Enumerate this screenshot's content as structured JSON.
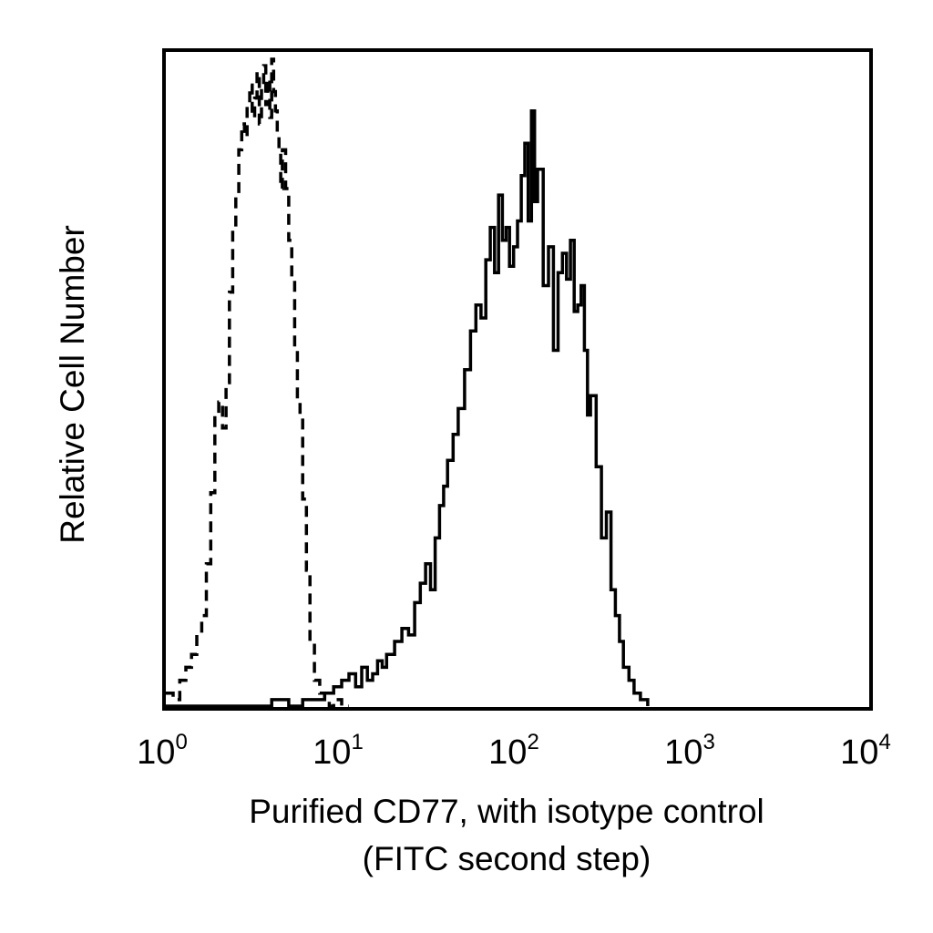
{
  "chart_data": {
    "type": "line",
    "title": "",
    "xlabel_line1": "Purified CD77, with isotype control",
    "xlabel_line2": "(FITC second step)",
    "ylabel": "Relative Cell Number",
    "x_scale": "log",
    "xlim": [
      1,
      10000
    ],
    "ylim": [
      0,
      1
    ],
    "x_ticks": [
      {
        "base": "10",
        "exp": "0"
      },
      {
        "base": "10",
        "exp": "1"
      },
      {
        "base": "10",
        "exp": "2"
      },
      {
        "base": "10",
        "exp": "3"
      },
      {
        "base": "10",
        "exp": "4"
      }
    ],
    "grid": false,
    "legend": "none",
    "series": [
      {
        "style": "dashed",
        "color": "#000000",
        "x": [
          1.0,
          1.1,
          1.2,
          1.3,
          1.4,
          1.5,
          1.6,
          1.7,
          1.8,
          1.9,
          2.0,
          2.1,
          2.2,
          2.3,
          2.4,
          2.5,
          2.6,
          2.7,
          2.8,
          2.9,
          3.0,
          3.1,
          3.2,
          3.3,
          3.4,
          3.5,
          3.6,
          3.7,
          3.8,
          3.9,
          4.0,
          4.1,
          4.2,
          4.3,
          4.4,
          4.5,
          4.6,
          4.8,
          5.0,
          5.2,
          5.4,
          5.6,
          5.8,
          6.0,
          6.3,
          6.6,
          7.0,
          7.5,
          8.0,
          8.5,
          9.0,
          10.0,
          11.0
        ],
        "y": [
          0.02,
          0.01,
          0.04,
          0.06,
          0.08,
          0.11,
          0.14,
          0.22,
          0.33,
          0.45,
          0.47,
          0.43,
          0.5,
          0.64,
          0.74,
          0.79,
          0.86,
          0.9,
          0.88,
          0.93,
          0.96,
          0.91,
          0.94,
          0.98,
          0.9,
          0.96,
          0.99,
          0.93,
          0.97,
          0.91,
          1.0,
          0.95,
          0.92,
          0.88,
          0.86,
          0.8,
          0.86,
          0.8,
          0.72,
          0.66,
          0.55,
          0.47,
          0.45,
          0.32,
          0.21,
          0.1,
          0.04,
          0.02,
          0.01,
          0.0,
          0.01,
          0.0,
          0.0
        ]
      },
      {
        "style": "solid",
        "color": "#000000",
        "x": [
          1.0,
          2.0,
          3.0,
          4.0,
          5.0,
          6.0,
          7.0,
          8.0,
          9.0,
          10.0,
          11.0,
          12.0,
          13.0,
          14.0,
          15.0,
          16.0,
          17.0,
          18.0,
          20.0,
          22.0,
          24.0,
          26.0,
          28.0,
          30.0,
          32.0,
          34.0,
          36.0,
          38.0,
          40.0,
          43.0,
          46.0,
          50.0,
          54.0,
          58.0,
          62.0,
          66.0,
          70.0,
          74.0,
          78.0,
          82.0,
          86.0,
          90.0,
          95.0,
          100.0,
          105.0,
          110.0,
          115.0,
          120.0,
          125.0,
          130.0,
          140.0,
          150.0,
          160.0,
          170.0,
          180.0,
          190.0,
          200.0,
          210.0,
          220.0,
          230.0,
          240.0,
          250.0,
          260.0,
          280.0,
          300.0,
          320.0,
          340.0,
          360.0,
          380.0,
          400.0,
          430.0,
          460.0,
          500.0,
          550.0
        ],
        "y": [
          0.0,
          0.0,
          0.0,
          0.01,
          0.0,
          0.01,
          0.01,
          0.02,
          0.03,
          0.04,
          0.05,
          0.03,
          0.06,
          0.04,
          0.05,
          0.07,
          0.06,
          0.08,
          0.1,
          0.12,
          0.11,
          0.16,
          0.19,
          0.22,
          0.18,
          0.26,
          0.31,
          0.34,
          0.38,
          0.42,
          0.46,
          0.52,
          0.58,
          0.62,
          0.6,
          0.69,
          0.74,
          0.67,
          0.79,
          0.72,
          0.74,
          0.68,
          0.71,
          0.75,
          0.82,
          0.87,
          0.75,
          0.92,
          0.78,
          0.83,
          0.65,
          0.71,
          0.55,
          0.67,
          0.7,
          0.66,
          0.72,
          0.61,
          0.62,
          0.65,
          0.55,
          0.45,
          0.48,
          0.37,
          0.26,
          0.3,
          0.18,
          0.14,
          0.1,
          0.06,
          0.04,
          0.02,
          0.01,
          0.0
        ]
      }
    ]
  }
}
